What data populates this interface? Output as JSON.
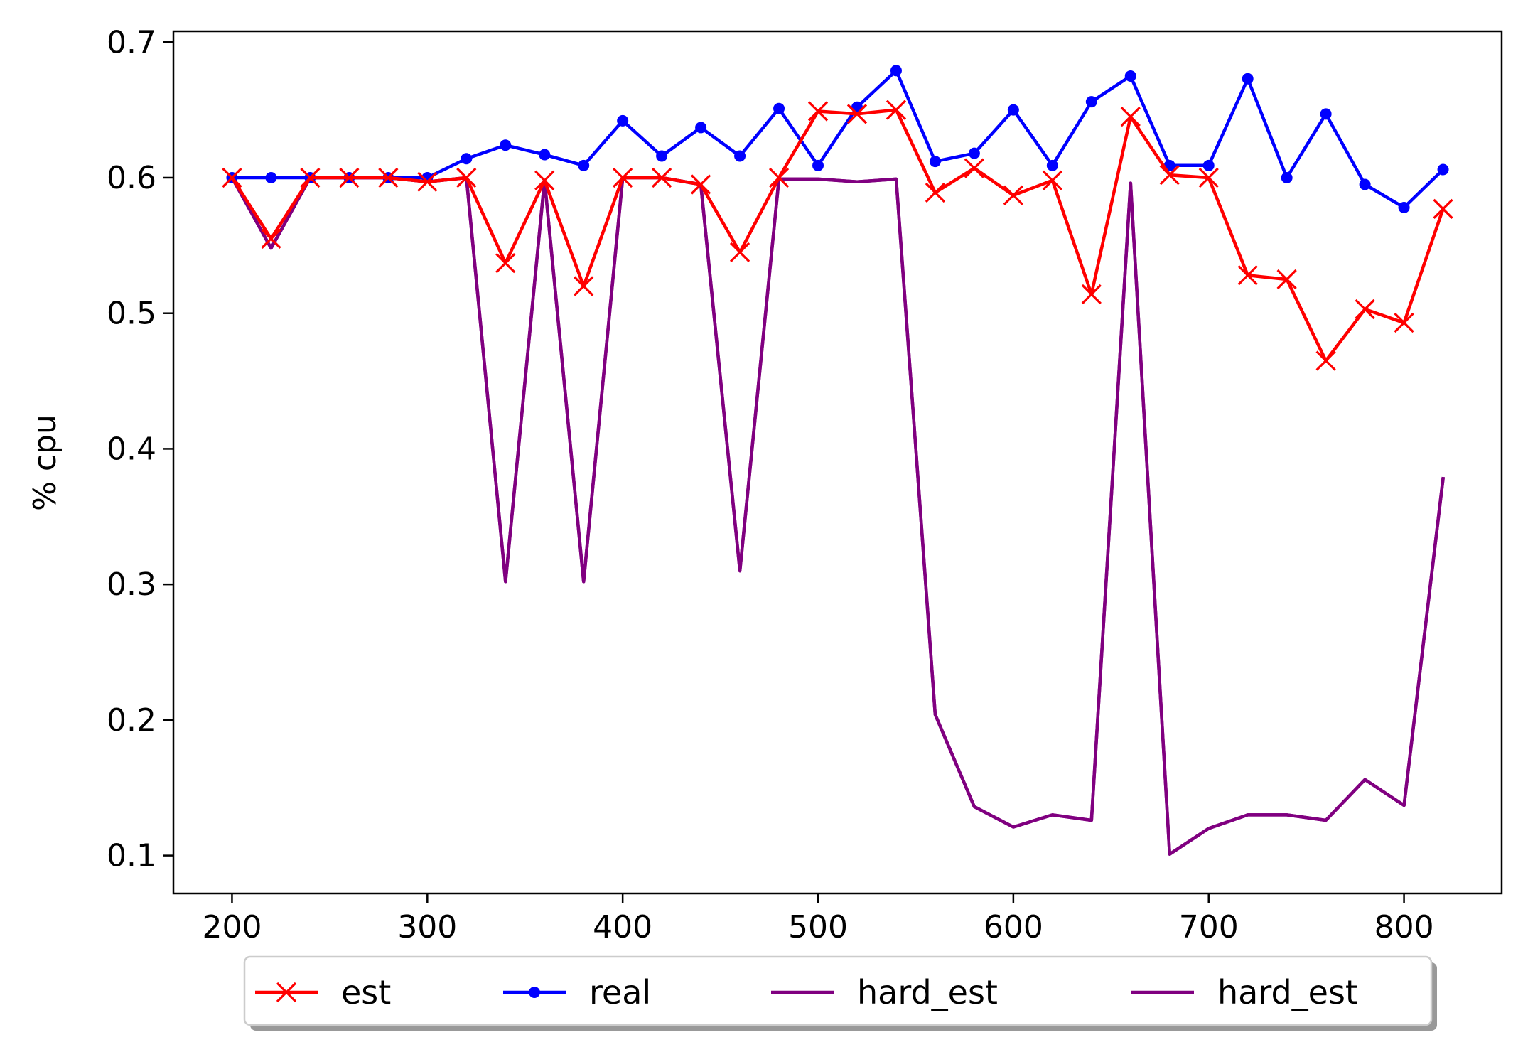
{
  "chart_data": {
    "type": "line",
    "title": "",
    "xlabel": "",
    "ylabel": "% cpu",
    "xlim": [
      170,
      850
    ],
    "ylim": [
      0.072,
      0.708
    ],
    "xticks": [
      200,
      300,
      400,
      500,
      600,
      700,
      800
    ],
    "yticks": [
      0.1,
      0.2,
      0.3,
      0.4,
      0.5,
      0.6,
      0.7
    ],
    "x": [
      200,
      220,
      240,
      260,
      280,
      300,
      320,
      340,
      360,
      380,
      400,
      420,
      440,
      460,
      480,
      500,
      520,
      540,
      560,
      580,
      600,
      620,
      640,
      660,
      680,
      700,
      720,
      740,
      760,
      780,
      800,
      820
    ],
    "legend_position": "below the plot, centered",
    "grid": false,
    "series": [
      {
        "name": "est",
        "color": "#ff0000",
        "marker": "x",
        "values": [
          0.6,
          0.555,
          0.6,
          0.6,
          0.6,
          0.597,
          0.6,
          0.537,
          0.598,
          0.52,
          0.6,
          0.6,
          0.595,
          0.545,
          0.6,
          0.649,
          0.647,
          0.65,
          0.589,
          0.607,
          0.587,
          0.598,
          0.514,
          0.645,
          0.602,
          0.6,
          0.528,
          0.525,
          0.465,
          0.503,
          0.493,
          0.577
        ]
      },
      {
        "name": "real",
        "color": "#0000ff",
        "marker": "dot",
        "values": [
          0.6,
          0.6,
          0.6,
          0.6,
          0.6,
          0.6,
          0.614,
          0.624,
          0.617,
          0.609,
          0.642,
          0.616,
          0.637,
          0.616,
          0.651,
          0.609,
          0.652,
          0.679,
          0.612,
          0.618,
          0.65,
          0.609,
          0.656,
          0.675,
          0.609,
          0.609,
          0.673,
          0.6,
          0.647,
          0.595,
          0.578,
          0.606
        ]
      },
      {
        "name": "hard_est",
        "color": "#800080",
        "marker": "none",
        "values": [
          0.6,
          0.548,
          0.6,
          0.6,
          0.6,
          0.597,
          0.6,
          0.302,
          0.598,
          0.302,
          0.6,
          0.6,
          0.595,
          0.31,
          0.599,
          0.599,
          0.597,
          0.599,
          0.204,
          0.136,
          0.121,
          0.13,
          0.126,
          0.596,
          0.101,
          0.12,
          0.13,
          0.13,
          0.126,
          0.156,
          0.137,
          0.378
        ]
      },
      {
        "name": "hard_est",
        "color": "#800080",
        "marker": "none",
        "values": [
          0.6,
          0.548,
          0.6,
          0.6,
          0.6,
          0.597,
          0.6,
          0.302,
          0.598,
          0.302,
          0.6,
          0.6,
          0.595,
          0.31,
          0.599,
          0.599,
          0.597,
          0.599,
          0.204,
          0.136,
          0.121,
          0.13,
          0.126,
          0.596,
          0.101,
          0.12,
          0.13,
          0.13,
          0.126,
          0.156,
          0.137,
          0.378
        ]
      }
    ]
  }
}
